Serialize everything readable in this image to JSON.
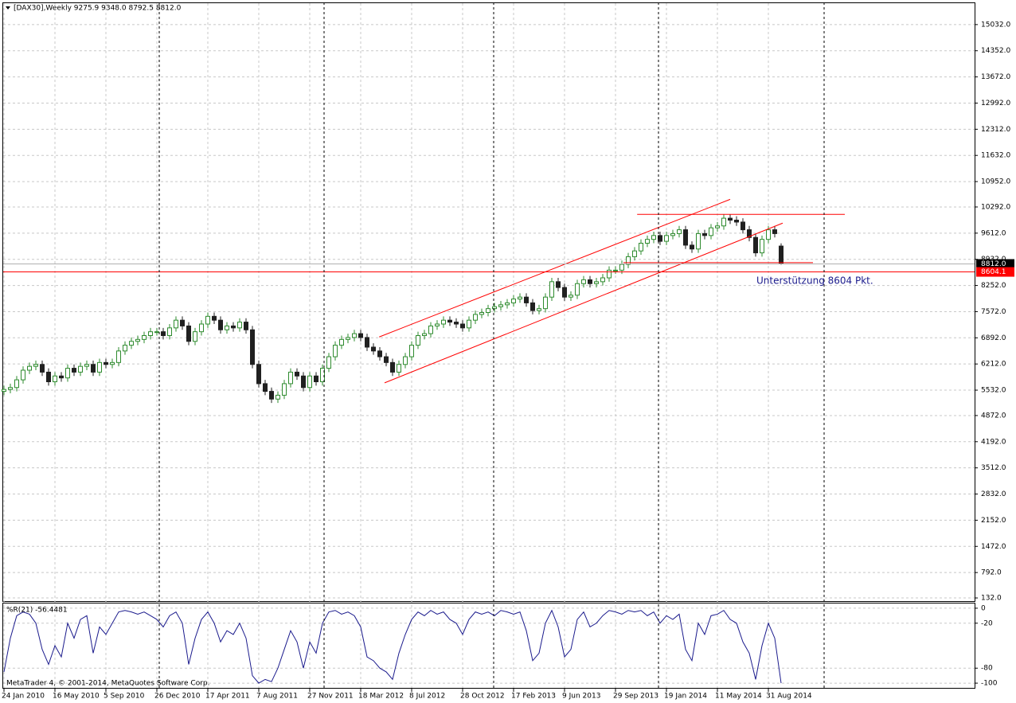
{
  "chart_data": [
    {
      "type": "candlestick",
      "title": "[DAX30],Weekly  9275.9 9348.0 8792.5 8812.0",
      "categories": [
        "24 Jan 2010",
        null,
        null,
        null,
        null,
        null,
        null,
        null,
        "16 May 2010",
        null,
        null,
        null,
        null,
        null,
        null,
        null,
        "5 Sep 2010",
        null,
        null,
        null,
        null,
        null,
        null,
        null,
        "26 Dec 2010",
        null,
        null,
        null,
        null,
        null,
        null,
        null,
        "17 Apr 2011",
        null,
        null,
        null,
        null,
        null,
        null,
        null,
        "7 Aug 2011",
        null,
        null,
        null,
        null,
        null,
        null,
        null,
        "27 Nov 2011",
        null,
        null,
        null,
        null,
        null,
        null,
        null,
        "18 Mar 2012",
        null,
        null,
        null,
        null,
        null,
        null,
        null,
        "8 Jul 2012",
        null,
        null,
        null,
        null,
        null,
        null,
        null,
        "28 Oct 2012",
        null,
        null,
        null,
        null,
        null,
        null,
        null,
        "17 Feb 2013",
        null,
        null,
        null,
        null,
        null,
        null,
        null,
        "9 Jun 2013",
        null,
        null,
        null,
        null,
        null,
        null,
        null,
        "29 Sep 2013",
        null,
        null,
        null,
        null,
        null,
        null,
        null,
        "19 Jan 2014",
        null,
        null,
        null,
        null,
        null,
        null,
        null,
        "11 May 2014",
        null,
        null,
        null,
        null,
        null,
        null,
        null,
        "31 Aug 2014",
        null,
        null
      ],
      "open": [
        5500,
        5550,
        5600,
        5800,
        6050,
        6150,
        6200,
        6000,
        5750,
        5900,
        5850,
        6100,
        6000,
        6150,
        6200,
        6000,
        6250,
        6200,
        6250,
        6550,
        6700,
        6800,
        6850,
        6950,
        7050,
        7050,
        6950,
        7150,
        7350,
        7200,
        6800,
        7050,
        7250,
        7450,
        7350,
        7100,
        7200,
        7150,
        7300,
        7100,
        6200,
        5700,
        5500,
        5300,
        5400,
        5700,
        6000,
        5900,
        5600,
        5900,
        5750,
        6100,
        6400,
        6700,
        6850,
        6900,
        7000,
        6900,
        6650,
        6550,
        6400,
        6250,
        6000,
        6200,
        6400,
        6700,
        6950,
        7000,
        7200,
        7250,
        7350,
        7300,
        7250,
        7150,
        7350,
        7500,
        7550,
        7650,
        7700,
        7750,
        7800,
        7900,
        7950,
        7800,
        7600,
        7650,
        7950,
        8350,
        8200,
        7950,
        8000,
        8300,
        8400,
        8300,
        8350,
        8450,
        8650,
        8650,
        8800,
        9000,
        9150,
        9350,
        9450,
        9550,
        9400,
        9550,
        9600,
        9700,
        9300,
        9200,
        9600,
        9550,
        9750,
        9800,
        10000,
        9950,
        9900,
        9700,
        9500,
        9100,
        9450,
        9700,
        9275.9
      ],
      "high": [
        5650,
        5700,
        5900,
        6150,
        6250,
        6300,
        6300,
        6100,
        6000,
        6000,
        6200,
        6200,
        6250,
        6300,
        6300,
        6350,
        6350,
        6350,
        6650,
        6800,
        6900,
        6950,
        7050,
        7150,
        7150,
        7150,
        7250,
        7450,
        7450,
        7300,
        7150,
        7350,
        7550,
        7550,
        7450,
        7300,
        7300,
        7400,
        7400,
        7200,
        6300,
        5800,
        5600,
        5500,
        5800,
        6100,
        6100,
        6000,
        6000,
        6000,
        6200,
        6500,
        6800,
        6950,
        7000,
        7100,
        7100,
        7000,
        6750,
        6650,
        6500,
        6350,
        6300,
        6500,
        6800,
        7050,
        7100,
        7300,
        7350,
        7450,
        7450,
        7400,
        7350,
        7450,
        7600,
        7650,
        7750,
        7800,
        7850,
        7900,
        8000,
        8050,
        8050,
        7900,
        7750,
        8050,
        8450,
        8450,
        8300,
        8100,
        8400,
        8500,
        8500,
        8450,
        8550,
        8750,
        8750,
        8900,
        9100,
        9250,
        9450,
        9550,
        9650,
        9650,
        9650,
        9700,
        9800,
        9800,
        9400,
        9700,
        9700,
        9850,
        9900,
        10100,
        10100,
        10050,
        10000,
        9800,
        9600,
        9550,
        9800,
        9800,
        9348
      ],
      "low": [
        5400,
        5450,
        5500,
        5700,
        5950,
        6050,
        5900,
        5650,
        5650,
        5750,
        5750,
        5900,
        5900,
        6050,
        5900,
        5900,
        6100,
        6100,
        6150,
        6450,
        6600,
        6700,
        6750,
        6850,
        6950,
        6850,
        6850,
        7050,
        7100,
        6700,
        6700,
        6950,
        7150,
        7250,
        7000,
        7000,
        7050,
        7050,
        7000,
        6100,
        5600,
        5400,
        5200,
        5200,
        5300,
        5600,
        5800,
        5500,
        5500,
        5650,
        5650,
        6000,
        6300,
        6600,
        6750,
        6800,
        6800,
        6550,
        6450,
        6300,
        6150,
        5900,
        5900,
        6100,
        6300,
        6600,
        6850,
        6900,
        7100,
        7150,
        7200,
        7150,
        7050,
        7050,
        7250,
        7400,
        7450,
        7550,
        7600,
        7650,
        7700,
        7800,
        7700,
        7500,
        7500,
        7550,
        7850,
        8100,
        7850,
        7850,
        7900,
        8200,
        8200,
        8200,
        8250,
        8350,
        8550,
        8550,
        8700,
        8900,
        9050,
        9250,
        9350,
        9300,
        9300,
        9450,
        9500,
        9200,
        9100,
        9100,
        9450,
        9450,
        9650,
        9700,
        9850,
        9800,
        9600,
        9400,
        9000,
        9000,
        9350,
        9500,
        8792.5
      ],
      "close": [
        5550,
        5600,
        5800,
        6050,
        6150,
        6200,
        6000,
        5750,
        5900,
        5850,
        6100,
        6000,
        6150,
        6200,
        6000,
        6250,
        6200,
        6250,
        6550,
        6700,
        6800,
        6850,
        6950,
        7050,
        7050,
        6950,
        7150,
        7350,
        7200,
        6800,
        7050,
        7250,
        7450,
        7350,
        7100,
        7200,
        7150,
        7300,
        7100,
        6200,
        5700,
        5500,
        5300,
        5400,
        5700,
        6000,
        5900,
        5600,
        5900,
        5750,
        6100,
        6400,
        6700,
        6850,
        6900,
        7000,
        6900,
        6650,
        6550,
        6400,
        6250,
        6000,
        6200,
        6400,
        6700,
        6950,
        7000,
        7200,
        7250,
        7350,
        7300,
        7250,
        7150,
        7350,
        7500,
        7550,
        7650,
        7700,
        7750,
        7800,
        7900,
        7950,
        7800,
        7600,
        7650,
        7950,
        8350,
        8200,
        7950,
        8000,
        8300,
        8400,
        8300,
        8350,
        8450,
        8650,
        8650,
        8800,
        9000,
        9150,
        9350,
        9450,
        9550,
        9400,
        9550,
        9600,
        9700,
        9300,
        9200,
        9600,
        9550,
        9750,
        9800,
        10000,
        9950,
        9900,
        9700,
        9500,
        9100,
        9450,
        9700,
        9600,
        8812
      ],
      "up_color": "#2e8b2e",
      "down_color": "#202020",
      "ylim": [
        50,
        15588
      ],
      "yticks": [
        {
          "value": 132,
          "label": "132.0"
        },
        {
          "value": 792,
          "label": "792.0"
        },
        {
          "value": 1472,
          "label": "1472.0"
        },
        {
          "value": 2152,
          "label": "2152.0"
        },
        {
          "value": 2832,
          "label": "2832.0"
        },
        {
          "value": 3512,
          "label": "3512.0"
        },
        {
          "value": 4192,
          "label": "4192.0"
        },
        {
          "value": 4872,
          "label": "4872.0"
        },
        {
          "value": 5532,
          "label": "5532.0"
        },
        {
          "value": 6212,
          "label": "6212.0"
        },
        {
          "value": 6892,
          "label": "6892.0"
        },
        {
          "value": 7572,
          "label": "7572.0"
        },
        {
          "value": 8252,
          "label": "8252.0"
        },
        {
          "value": 8932,
          "label": "8932.0"
        },
        {
          "value": 9612,
          "label": "9612.0"
        },
        {
          "value": 10292,
          "label": "10292.0"
        },
        {
          "value": 10952,
          "label": "10952.0"
        },
        {
          "value": 11632,
          "label": "11632.0"
        },
        {
          "value": 12312,
          "label": "12312.0"
        },
        {
          "value": 12992,
          "label": "12992.0"
        },
        {
          "value": 13672,
          "label": "13672.0"
        },
        {
          "value": 14352,
          "label": "14352.0"
        },
        {
          "value": 15032,
          "label": "15032.0"
        }
      ],
      "grid": true,
      "trendlines": [
        {
          "x": [
            58.9,
            114
          ],
          "y": [
            6914,
            10490
          ],
          "color": "#ff0000"
        },
        {
          "x": [
            59.75,
            122.25
          ],
          "y": [
            5722,
            9873
          ],
          "color": "#ff0000"
        },
        {
          "x": [
            99.4,
            132
          ],
          "y": [
            10099,
            10099
          ],
          "color": "#ff0000"
        },
        {
          "x": [
            97.25,
            127
          ],
          "y": [
            8846,
            8846
          ],
          "color": "#ff0000"
        }
      ],
      "price_lines": [
        {
          "value": 8812,
          "label": "8812.0",
          "color": "#000000",
          "line_color": "#b0b0b0"
        },
        {
          "value": 8604.1,
          "label": "8604.1",
          "color": "#ff0000",
          "line_color": "#ff0000"
        }
      ],
      "annotation": {
        "text": "Unterstützung 8604 Pkt.",
        "color": "#1a1a8c"
      }
    },
    {
      "type": "line",
      "title": "%R(21) -56.4481",
      "values": [
        -85,
        -40,
        -10,
        -5,
        -8,
        -20,
        -55,
        -75,
        -50,
        -65,
        -20,
        -40,
        -15,
        -10,
        -60,
        -25,
        -35,
        -20,
        -5,
        -3,
        -5,
        -8,
        -5,
        -10,
        -15,
        -25,
        -10,
        -5,
        -20,
        -75,
        -40,
        -15,
        -5,
        -20,
        -45,
        -30,
        -35,
        -20,
        -40,
        -90,
        -100,
        -95,
        -98,
        -80,
        -55,
        -30,
        -45,
        -80,
        -45,
        -60,
        -20,
        -5,
        -3,
        -8,
        -5,
        -10,
        -25,
        -65,
        -70,
        -80,
        -85,
        -95,
        -60,
        -35,
        -15,
        -5,
        -10,
        -3,
        -8,
        -5,
        -15,
        -20,
        -35,
        -15,
        -5,
        -8,
        -5,
        -10,
        -3,
        -5,
        -8,
        -5,
        -30,
        -70,
        -60,
        -20,
        -3,
        -25,
        -65,
        -55,
        -15,
        -5,
        -25,
        -20,
        -10,
        -3,
        -5,
        -8,
        -3,
        -5,
        -3,
        -10,
        -5,
        -20,
        -10,
        -15,
        -8,
        -55,
        -70,
        -20,
        -35,
        -10,
        -8,
        -3,
        -15,
        -20,
        -45,
        -60,
        -95,
        -50,
        -20,
        -40,
        -100
      ],
      "color": "#1a1a8c",
      "ylim": [
        -106.3,
        6.3
      ],
      "yticks": [
        0,
        -20,
        -80,
        -100
      ],
      "grid": true
    }
  ],
  "copyright": "MetaTrader 4, © 2001-2014, MetaQuotes Software Corp."
}
